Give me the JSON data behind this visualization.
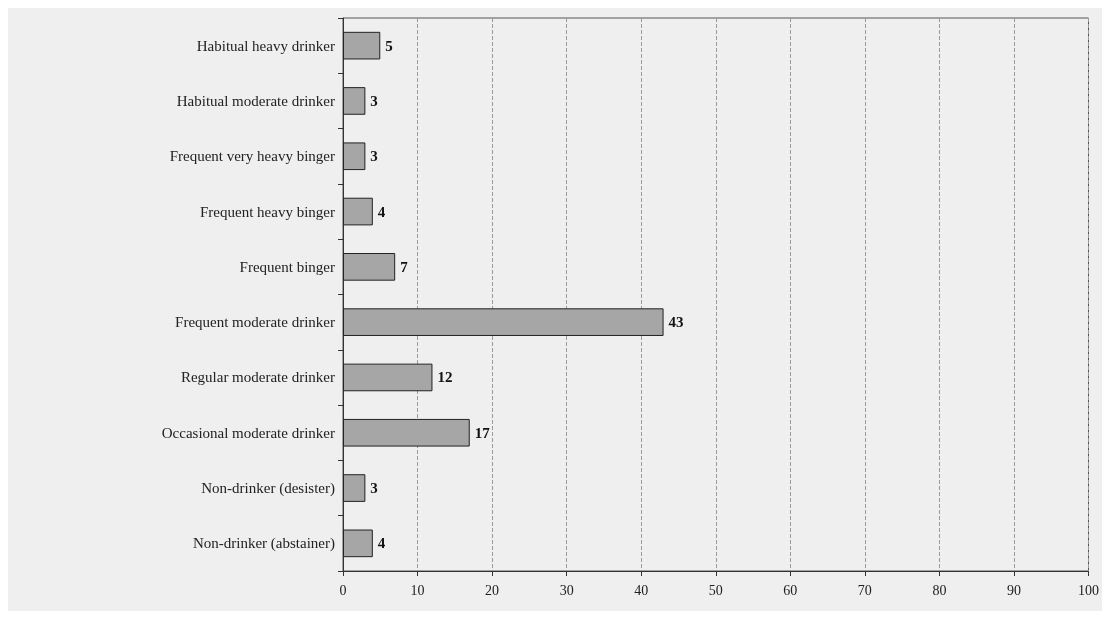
{
  "chart_data": {
    "type": "bar",
    "orientation": "horizontal",
    "categories": [
      "Habitual heavy drinker",
      "Habitual moderate drinker",
      "Frequent very heavy binger",
      "Frequent heavy binger",
      "Frequent binger",
      "Frequent moderate drinker",
      "Regular moderate drinker",
      "Occasional moderate drinker",
      "Non-drinker (desister)",
      "Non-drinker (abstainer)"
    ],
    "values": [
      5,
      3,
      3,
      4,
      7,
      43,
      12,
      17,
      3,
      4
    ],
    "color": "#a6a6a6",
    "xlim": [
      0,
      100
    ],
    "xticks": [
      0,
      10,
      20,
      30,
      40,
      50,
      60,
      70,
      80,
      90,
      100
    ],
    "grid": "x",
    "data_labels": true
  }
}
